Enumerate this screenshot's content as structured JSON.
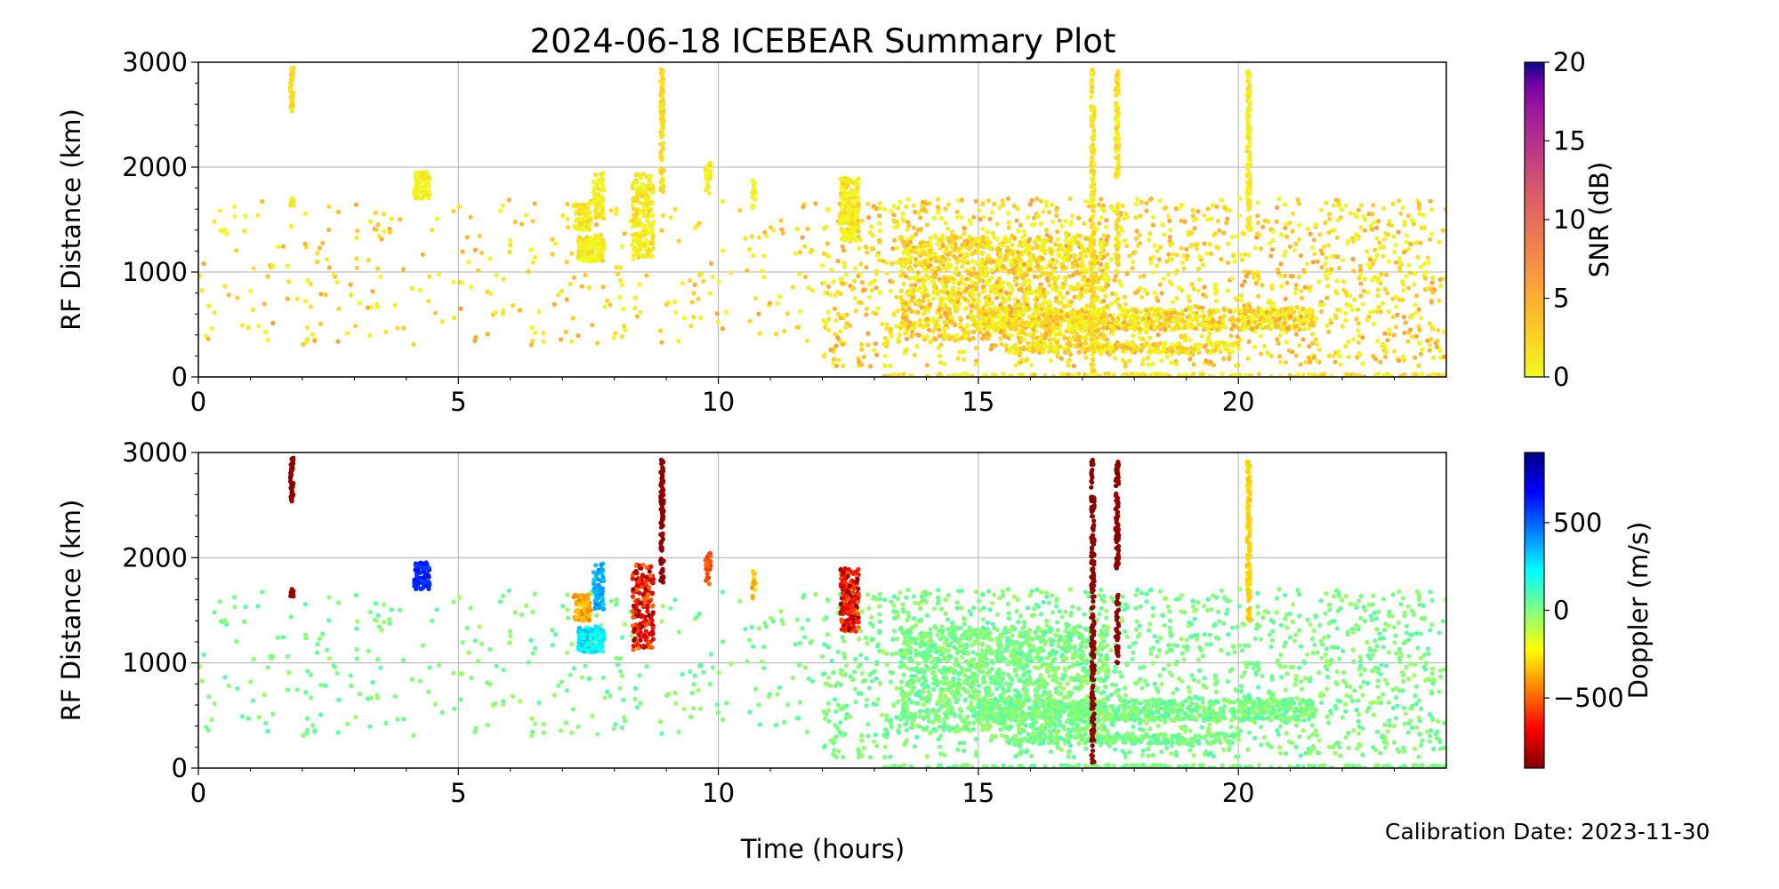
{
  "chart_data": {
    "type": "scatter",
    "title": "2024-06-18 ICEBEAR Summary Plot",
    "footer": "Calibration Date: 2023-11-30",
    "xlabel": "Time (hours)",
    "xlim": [
      0,
      24
    ],
    "xticks": [
      "0",
      "5",
      "10",
      "15",
      "20"
    ],
    "xtick_values": [
      0,
      5,
      10,
      15,
      20
    ],
    "grid": true,
    "panels": [
      {
        "ylabel": "RF Distance (km)",
        "ylim": [
          0,
          3000
        ],
        "yticks": [
          "0",
          "1000",
          "2000",
          "3000"
        ],
        "ytick_values": [
          0,
          1000,
          2000,
          3000
        ],
        "color_by": "snr",
        "colorbar": {
          "label": "SNR (dB)",
          "range": [
            0,
            20
          ],
          "ticks": [
            "0",
            "5",
            "10",
            "15",
            "20"
          ],
          "tick_values": [
            0,
            5,
            10,
            15,
            20
          ],
          "colormap": "plasma_r"
        }
      },
      {
        "ylabel": "RF Distance (km)",
        "ylim": [
          0,
          3000
        ],
        "yticks": [
          "0",
          "1000",
          "2000",
          "3000"
        ],
        "ytick_values": [
          0,
          1000,
          2000,
          3000
        ],
        "color_by": "doppler",
        "colorbar": {
          "label": "Doppler (m/s)",
          "range": [
            -900,
            900
          ],
          "ticks": [
            "−500",
            "0",
            "500"
          ],
          "tick_values": [
            -500,
            0,
            500
          ],
          "colormap": "jet_r"
        }
      }
    ],
    "clusters": [
      {
        "t": [
          0,
          12
        ],
        "r": [
          300,
          1700
        ],
        "n": 330,
        "snr": [
          0,
          6
        ],
        "doppler": [
          -60,
          80
        ]
      },
      {
        "t": [
          12,
          24
        ],
        "r": [
          100,
          1700
        ],
        "n": 1500,
        "snr": [
          0,
          6
        ],
        "doppler": [
          -60,
          80
        ]
      },
      {
        "t": [
          13.5,
          17.5
        ],
        "r": [
          350,
          1350
        ],
        "n": 1100,
        "snr": [
          0,
          6
        ],
        "doppler": [
          -60,
          80
        ]
      },
      {
        "t": [
          15,
          21.5
        ],
        "r": [
          450,
          650
        ],
        "n": 700,
        "snr": [
          0,
          6
        ],
        "doppler": [
          -60,
          80
        ]
      },
      {
        "t": [
          15.5,
          20
        ],
        "r": [
          230,
          330
        ],
        "n": 250,
        "snr": [
          0,
          5
        ],
        "doppler": [
          -60,
          80
        ]
      },
      {
        "t": [
          13,
          24
        ],
        "r": [
          0,
          30
        ],
        "n": 200,
        "snr": [
          0,
          4
        ],
        "doppler": [
          -40,
          60
        ]
      },
      {
        "t": [
          4.15,
          4.45
        ],
        "r": [
          1700,
          1960
        ],
        "n": 70,
        "snr": [
          0,
          2
        ],
        "doppler": [
          550,
          650
        ]
      },
      {
        "t": [
          7.2,
          7.55
        ],
        "r": [
          1400,
          1650
        ],
        "n": 60,
        "snr": [
          0,
          3
        ],
        "doppler": [
          -450,
          -300
        ]
      },
      {
        "t": [
          7.3,
          7.8
        ],
        "r": [
          1100,
          1350
        ],
        "n": 120,
        "snr": [
          0,
          3
        ],
        "doppler": [
          150,
          350
        ]
      },
      {
        "t": [
          7.6,
          7.8
        ],
        "r": [
          1500,
          1950
        ],
        "n": 60,
        "snr": [
          0,
          2
        ],
        "doppler": [
          300,
          450
        ]
      },
      {
        "t": [
          8.35,
          8.75
        ],
        "r": [
          1100,
          1950
        ],
        "n": 180,
        "snr": [
          0,
          3
        ],
        "doppler": [
          -900,
          -450
        ]
      },
      {
        "t": [
          9.75,
          9.85
        ],
        "r": [
          1750,
          2050
        ],
        "n": 25,
        "snr": [
          0,
          2
        ],
        "doppler": [
          -600,
          -450
        ]
      },
      {
        "t": [
          10.65,
          10.72
        ],
        "r": [
          1600,
          1870
        ],
        "n": 15,
        "snr": [
          0,
          2
        ],
        "doppler": [
          -450,
          -250
        ]
      },
      {
        "t": [
          12.35,
          12.7
        ],
        "r": [
          1300,
          1900
        ],
        "n": 160,
        "snr": [
          0,
          3
        ],
        "doppler": [
          -900,
          -500
        ]
      }
    ],
    "streaks": [
      {
        "t": 1.8,
        "r": [
          2500,
          2950
        ],
        "n": 50,
        "snr": [
          1,
          3
        ],
        "doppler": [
          -900,
          -850
        ]
      },
      {
        "t": 1.8,
        "r": [
          1620,
          1700
        ],
        "n": 10,
        "snr": [
          0,
          2
        ],
        "doppler": [
          -900,
          -850
        ]
      },
      {
        "t": 8.92,
        "r": [
          1750,
          2950
        ],
        "n": 90,
        "snr": [
          1,
          3
        ],
        "doppler": [
          -900,
          -850
        ]
      },
      {
        "t": 17.2,
        "r": [
          50,
          2950
        ],
        "n": 200,
        "snr": [
          0,
          3
        ],
        "doppler": [
          -900,
          -850
        ]
      },
      {
        "t": 17.67,
        "r": [
          1900,
          2950
        ],
        "n": 80,
        "snr": [
          0,
          3
        ],
        "doppler": [
          -900,
          -850
        ]
      },
      {
        "t": 17.67,
        "r": [
          1000,
          1650
        ],
        "n": 40,
        "snr": [
          0,
          3
        ],
        "doppler": [
          -900,
          -850
        ]
      },
      {
        "t": 20.2,
        "r": [
          1400,
          2950
        ],
        "n": 110,
        "snr": [
          0,
          2
        ],
        "doppler": [
          -330,
          -280
        ]
      }
    ]
  }
}
